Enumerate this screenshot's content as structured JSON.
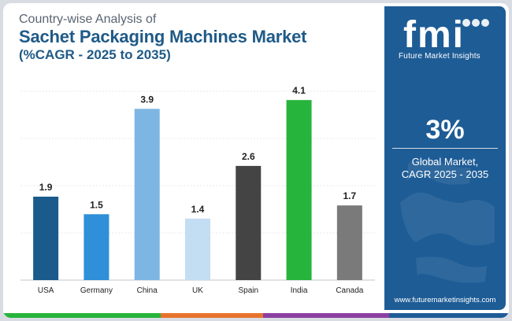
{
  "header": {
    "subtitle": "Country-wise Analysis of",
    "title": "Sachet Packaging Machines Market",
    "period": "(%CAGR - 2025 to 2035)"
  },
  "side": {
    "brand": "fmi",
    "brand_full": "Future Market Insights",
    "stat_value": "3%",
    "stat_label_1": "Global Market,",
    "stat_label_2": "CAGR 2025 - 2035",
    "url": "www.futuremarketinsights.com",
    "bg_color": "#1e5c96"
  },
  "chart_data": {
    "type": "bar",
    "categories": [
      "USA",
      "Germany",
      "China",
      "UK",
      "Spain",
      "India",
      "Canada"
    ],
    "values": [
      1.9,
      1.5,
      3.9,
      1.4,
      2.6,
      4.1,
      1.7
    ],
    "value_labels": [
      "1.9",
      "1.5",
      "3.9",
      "1.4",
      "2.6",
      "4.1",
      "1.7"
    ],
    "colors": [
      "#1a5a8c",
      "#2f8fd8",
      "#7db6e3",
      "#c3ddf2",
      "#444444",
      "#27b43c",
      "#7a7a7a"
    ],
    "ylim": [
      0,
      4.3
    ],
    "grid": true,
    "xlabel": "",
    "ylabel": ""
  },
  "footer_colors": [
    "#27b43c",
    "#e8732c",
    "#8b3fa1",
    "#1e5c96"
  ]
}
